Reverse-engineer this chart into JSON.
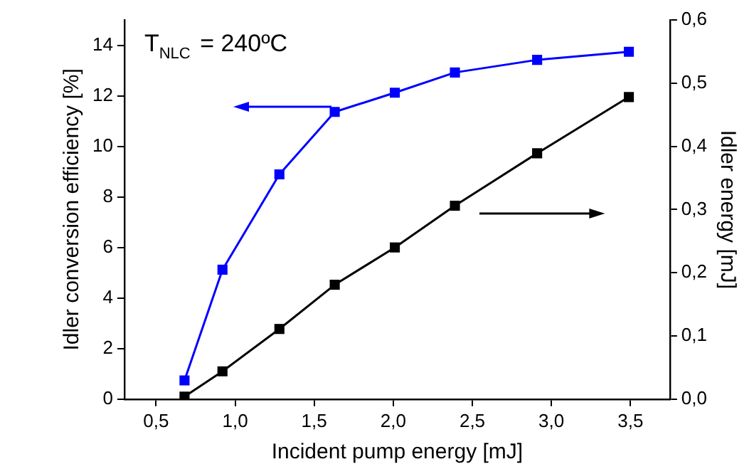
{
  "chart_data": {
    "type": "line",
    "xlabel": "Incident pump energy [mJ]",
    "ylabel": "Idler conversion efficiency [%]",
    "y2label": "Idler energy [mJ]",
    "annotations": [
      "T$_{NLC}$ = 240ºC"
    ],
    "series": [
      {
        "color": "#0000ff",
        "x": [
          0.68,
          0.92,
          1.28,
          1.63,
          2.01,
          2.39,
          2.91,
          3.49
        ],
        "values": [
          0.74,
          5.12,
          8.89,
          11.36,
          12.12,
          12.92,
          13.42,
          13.74
        ]
      },
      {
        "color": "#000000",
        "axis": "y2",
        "x": [
          0.68,
          0.92,
          1.28,
          1.63,
          2.01,
          2.39,
          2.91,
          3.49
        ],
        "values": [
          0.004,
          0.044,
          0.111,
          0.181,
          0.24,
          0.306,
          0.389,
          0.478
        ]
      }
    ],
    "xlim": [
      0.3,
      3.75
    ],
    "xticks": [
      {
        "value": 0.5,
        "label": "0,5"
      },
      {
        "value": 1,
        "label": "1,0"
      },
      {
        "value": 1.5,
        "label": "1,5"
      },
      {
        "value": 2,
        "label": "2,0"
      },
      {
        "value": 2.5,
        "label": "2,5"
      },
      {
        "value": 3,
        "label": "3,0"
      },
      {
        "value": 3.5,
        "label": "3,5"
      }
    ],
    "ylim": [
      0,
      15
    ],
    "yticks": [
      0,
      2,
      4,
      6,
      8,
      10,
      12,
      14
    ],
    "y2lim": [
      0,
      0.6
    ],
    "y2ticks": [
      {
        "value": 0,
        "label": "0,0"
      },
      {
        "value": 0.1,
        "label": "0,1"
      },
      {
        "value": 0.2,
        "label": "0,2"
      },
      {
        "value": 0.3,
        "label": "0,3"
      },
      {
        "value": 0.4,
        "label": "0,4"
      },
      {
        "value": 0.5,
        "label": "0,5"
      },
      {
        "value": 0.6,
        "label": "0,6"
      }
    ],
    "grid": false,
    "legend": false,
    "marker": "square",
    "line_style": "solid"
  }
}
